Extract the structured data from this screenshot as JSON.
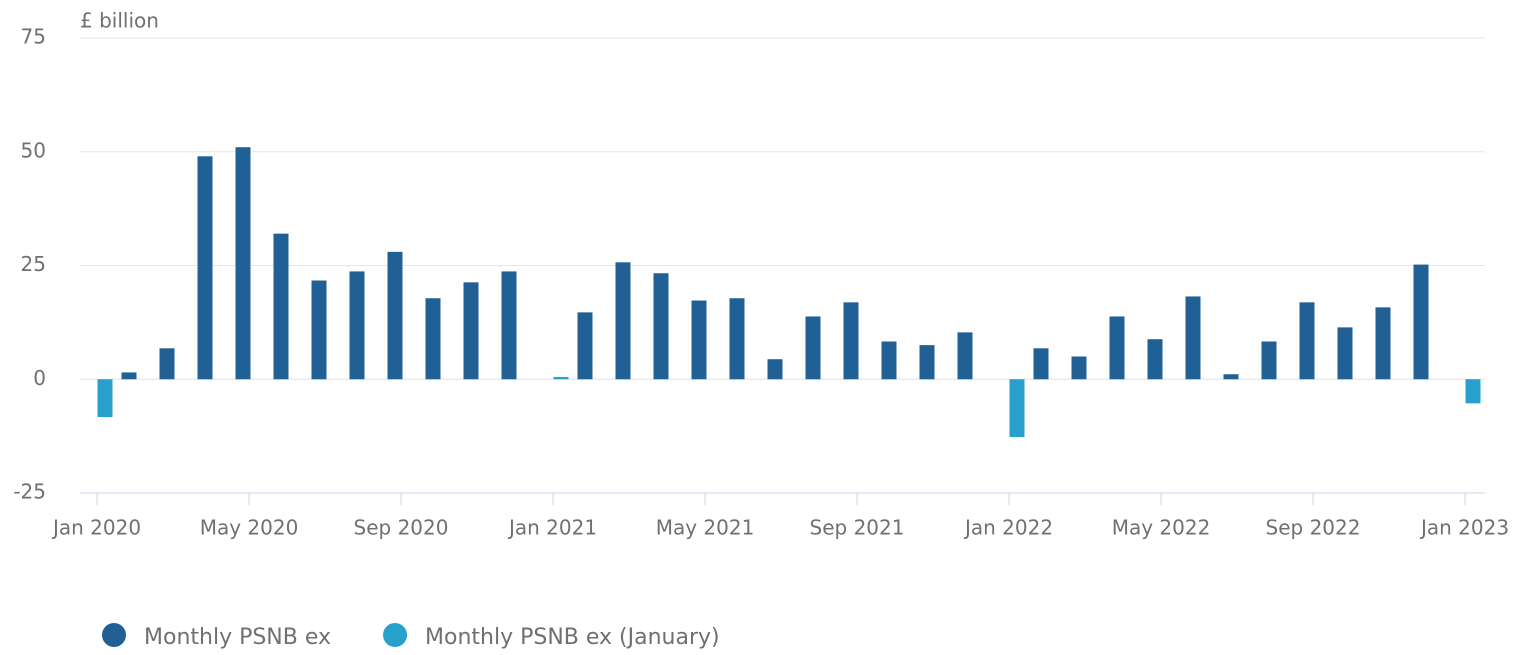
{
  "chart_data": {
    "type": "bar",
    "y_axis_label": "£ billion",
    "categories": [
      "Jan 2020",
      null,
      null,
      null,
      "May 2020",
      null,
      null,
      null,
      "Sep 2020",
      null,
      null,
      null,
      "Jan 2021",
      null,
      null,
      null,
      "May 2021",
      null,
      null,
      null,
      "Sep 2021",
      null,
      null,
      null,
      "Jan 2022",
      null,
      null,
      null,
      "May 2022",
      null,
      null,
      null,
      "Sep 2022",
      null,
      null,
      null,
      "Jan 2023"
    ],
    "series": [
      {
        "name": "Monthly PSNB ex",
        "color": "#206095",
        "values": [
          null,
          1.5,
          6.8,
          49,
          51,
          32,
          21.7,
          23.7,
          28,
          17.8,
          21.3,
          23.7,
          null,
          14.7,
          25.7,
          23.3,
          17.3,
          17.8,
          4.4,
          13.8,
          16.9,
          8.3,
          7.5,
          10.3,
          null,
          6.8,
          5,
          13.8,
          8.8,
          18.2,
          1.1,
          8.3,
          16.9,
          11.4,
          15.8,
          25.2,
          null
        ]
      },
      {
        "name": "Monthly PSNB ex (January)",
        "color": "#27a0cc",
        "values": [
          -8.3,
          null,
          null,
          null,
          null,
          null,
          null,
          null,
          null,
          null,
          null,
          null,
          0.5,
          null,
          null,
          null,
          null,
          null,
          null,
          null,
          null,
          null,
          null,
          null,
          -12.7,
          null,
          null,
          null,
          null,
          null,
          null,
          null,
          null,
          null,
          null,
          null,
          -5.3
        ]
      }
    ],
    "ylim": [
      -25,
      75
    ],
    "yticks": [
      -25,
      0,
      25,
      50,
      75
    ],
    "grid": true,
    "legend": "bottom-left"
  }
}
